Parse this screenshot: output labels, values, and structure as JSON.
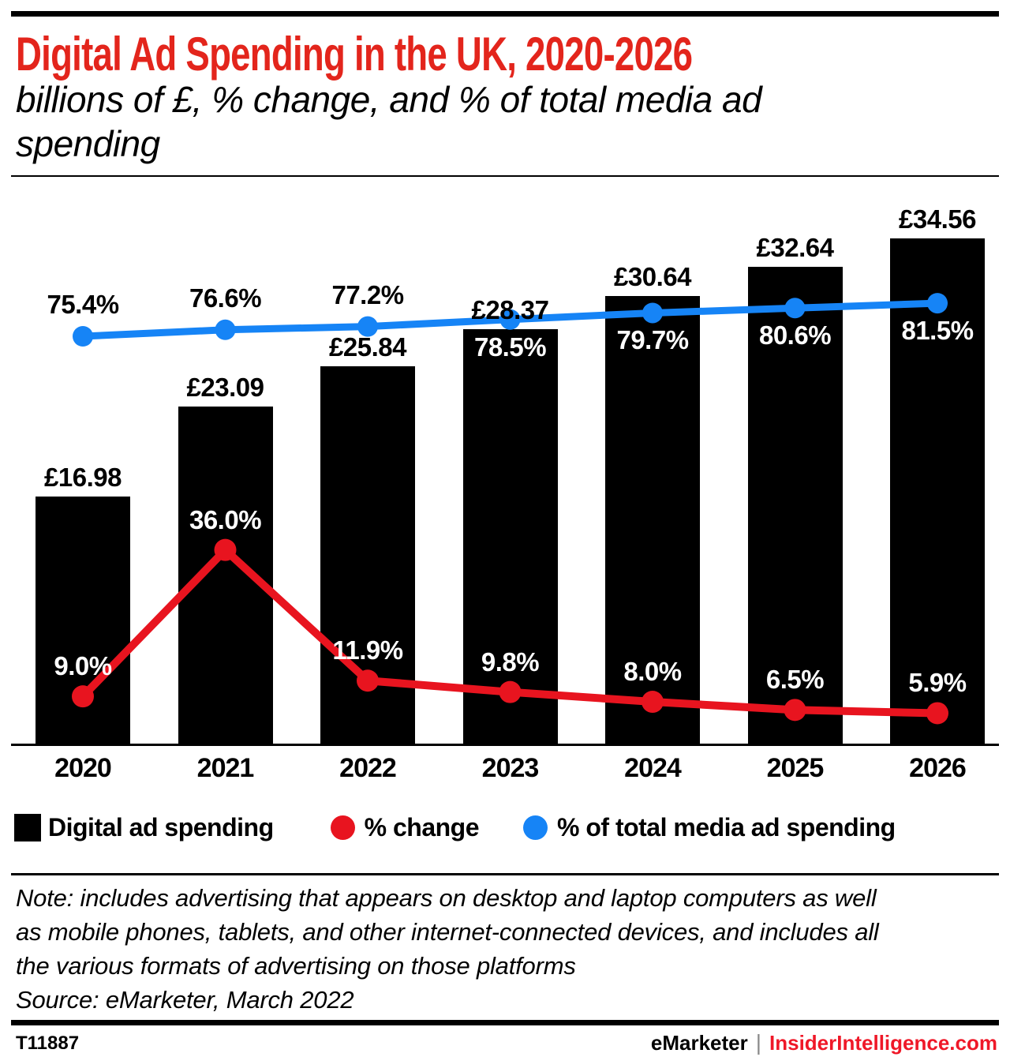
{
  "header": {
    "title": "Digital Ad Spending in the UK, 2020-2026",
    "subtitle": "billions of £, % change, and % of total media ad spending"
  },
  "chart_data": {
    "type": "bar",
    "title": "Digital Ad Spending in the UK, 2020-2026",
    "subtitle": "billions of £, % change, and % of total media ad spending",
    "categories": [
      "2020",
      "2021",
      "2022",
      "2023",
      "2024",
      "2025",
      "2026"
    ],
    "series": [
      {
        "name": "Digital ad spending",
        "type": "bar",
        "unit": "billions of £",
        "color": "#000000",
        "values": [
          16.98,
          23.09,
          25.84,
          28.37,
          30.64,
          32.64,
          34.56
        ],
        "labels": [
          "£16.98",
          "£23.09",
          "£25.84",
          "£28.37",
          "£30.64",
          "£32.64",
          "£34.56"
        ]
      },
      {
        "name": "% change",
        "type": "line",
        "unit": "%",
        "color": "#e8141f",
        "values": [
          9.0,
          36.0,
          11.9,
          9.8,
          8.0,
          6.5,
          5.9
        ],
        "labels": [
          "9.0%",
          "36.0%",
          "11.9%",
          "9.8%",
          "8.0%",
          "6.5%",
          "5.9%"
        ]
      },
      {
        "name": "% of total media ad spending",
        "type": "line",
        "unit": "%",
        "color": "#1684f6",
        "values": [
          75.4,
          76.6,
          77.2,
          78.5,
          79.7,
          80.6,
          81.5
        ],
        "labels": [
          "75.4%",
          "76.6%",
          "77.2%",
          "78.5%",
          "79.7%",
          "80.6%",
          "81.5%"
        ]
      }
    ],
    "axes": {
      "x": {
        "labels_visible": true
      },
      "y_left": {
        "min": 0,
        "visible": false,
        "unit": "billions of £"
      },
      "y_right": {
        "min": 0,
        "visible": false,
        "unit": "%"
      }
    },
    "grid": false,
    "legend_position": "bottom"
  },
  "legend": {
    "items": [
      {
        "label": "Digital ad spending",
        "marker": "square",
        "color": "#000000"
      },
      {
        "label": "% change",
        "marker": "circle",
        "color": "#e8141f"
      },
      {
        "label": "% of total media ad spending",
        "marker": "circle",
        "color": "#1684f6"
      }
    ]
  },
  "note": {
    "lines": [
      "Note: includes advertising that appears on desktop and laptop computers as well",
      "as mobile phones, tablets, and other internet-connected devices, and includes all",
      "the various formats of advertising on those platforms"
    ],
    "source": "Source: eMarketer, March 2022"
  },
  "footer": {
    "id": "T11887",
    "brand": "eMarketer",
    "separator": "|",
    "site": "InsiderIntelligence.com"
  }
}
